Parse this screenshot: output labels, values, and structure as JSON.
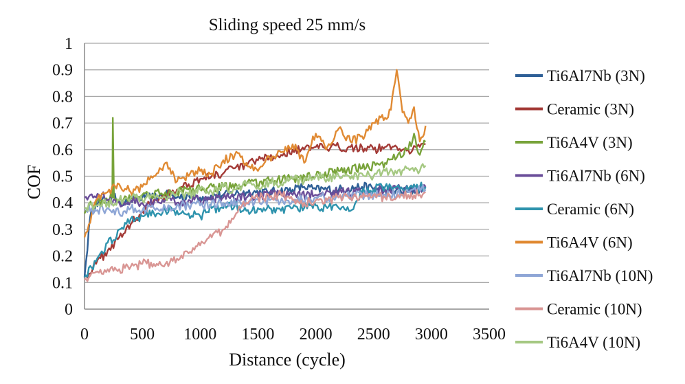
{
  "chart_data": {
    "type": "line",
    "title": "Sliding speed 25 mm/s",
    "xlabel": "Distance (cycle)",
    "ylabel": "COF",
    "xlim": [
      0,
      3500
    ],
    "ylim": [
      0,
      1
    ],
    "xticks": [
      "0",
      "500",
      "1000",
      "1500",
      "2000",
      "2500",
      "3000",
      "3500"
    ],
    "yticks": [
      "0",
      "0.1",
      "0.2",
      "0.3",
      "0.4",
      "0.5",
      "0.6",
      "0.7",
      "0.8",
      "0.9",
      "1"
    ],
    "grid": true,
    "legend_position": "right",
    "series": [
      {
        "name": "Ti6Al7Nb (3N)",
        "color": "#2e5f96",
        "x": [
          0,
          50,
          100,
          150,
          200,
          250,
          300,
          350,
          400,
          500,
          600,
          700,
          800,
          900,
          1000,
          1200,
          1400,
          1600,
          1800,
          1900,
          2000,
          2200,
          2400,
          2600,
          2800,
          2950
        ],
        "y": [
          0.12,
          0.35,
          0.4,
          0.41,
          0.4,
          0.42,
          0.41,
          0.4,
          0.41,
          0.42,
          0.42,
          0.43,
          0.42,
          0.43,
          0.42,
          0.43,
          0.44,
          0.44,
          0.45,
          0.46,
          0.45,
          0.45,
          0.46,
          0.45,
          0.44,
          0.46
        ]
      },
      {
        "name": "Ceramic (3N)",
        "color": "#a33a36",
        "x": [
          0,
          100,
          200,
          300,
          400,
          500,
          600,
          700,
          800,
          900,
          1000,
          1100,
          1200,
          1300,
          1400,
          1500,
          1600,
          1700,
          1800,
          1900,
          2000,
          2100,
          2200,
          2300,
          2400,
          2500,
          2600,
          2700,
          2800,
          2900,
          2950
        ],
        "y": [
          0.12,
          0.17,
          0.22,
          0.27,
          0.32,
          0.37,
          0.41,
          0.43,
          0.45,
          0.47,
          0.49,
          0.5,
          0.51,
          0.53,
          0.54,
          0.56,
          0.57,
          0.58,
          0.6,
          0.6,
          0.61,
          0.6,
          0.61,
          0.61,
          0.61,
          0.6,
          0.61,
          0.61,
          0.6,
          0.61,
          0.62
        ]
      },
      {
        "name": "Ti6A4V (3N)",
        "color": "#78a33a",
        "x": [
          0,
          40,
          100,
          150,
          200,
          240,
          245,
          255,
          300,
          400,
          500,
          600,
          700,
          800,
          900,
          1000,
          1200,
          1400,
          1600,
          1800,
          2000,
          2200,
          2400,
          2600,
          2700,
          2800,
          2850,
          2900,
          2950
        ],
        "y": [
          0.36,
          0.39,
          0.4,
          0.41,
          0.41,
          0.42,
          0.72,
          0.42,
          0.41,
          0.42,
          0.43,
          0.43,
          0.44,
          0.44,
          0.45,
          0.45,
          0.46,
          0.47,
          0.48,
          0.49,
          0.5,
          0.52,
          0.53,
          0.55,
          0.57,
          0.6,
          0.66,
          0.58,
          0.63
        ]
      },
      {
        "name": "Ti6Al7Nb (6N)",
        "color": "#6a4d99",
        "x": [
          0,
          50,
          100,
          150,
          200,
          300,
          400,
          500,
          600,
          700,
          800,
          900,
          1000,
          1200,
          1400,
          1600,
          1800,
          2000,
          2200,
          2400,
          2600,
          2800,
          2950
        ],
        "y": [
          0.42,
          0.43,
          0.42,
          0.43,
          0.41,
          0.4,
          0.41,
          0.4,
          0.4,
          0.41,
          0.4,
          0.41,
          0.41,
          0.42,
          0.42,
          0.43,
          0.43,
          0.43,
          0.44,
          0.44,
          0.45,
          0.45,
          0.46
        ]
      },
      {
        "name": "Ceramic (6N)",
        "color": "#2e93ad",
        "x": [
          0,
          100,
          200,
          250,
          300,
          400,
          500,
          600,
          700,
          800,
          900,
          1000,
          1100,
          1200,
          1300,
          1400,
          1500,
          1600,
          1700,
          1800,
          1900,
          2000,
          2100,
          2200,
          2300,
          2400,
          2500,
          2600,
          2700,
          2800,
          2900,
          2950
        ],
        "y": [
          0.12,
          0.18,
          0.25,
          0.26,
          0.3,
          0.34,
          0.35,
          0.36,
          0.37,
          0.37,
          0.36,
          0.35,
          0.38,
          0.38,
          0.39,
          0.37,
          0.38,
          0.38,
          0.37,
          0.38,
          0.38,
          0.39,
          0.38,
          0.38,
          0.37,
          0.44,
          0.45,
          0.46,
          0.46,
          0.45,
          0.46,
          0.46
        ]
      },
      {
        "name": "Ti6A4V (6N)",
        "color": "#e08a33",
        "x": [
          0,
          100,
          200,
          300,
          400,
          500,
          600,
          700,
          800,
          900,
          1000,
          1100,
          1200,
          1300,
          1400,
          1500,
          1600,
          1700,
          1800,
          1900,
          2000,
          2100,
          2200,
          2300,
          2400,
          2500,
          2600,
          2650,
          2700,
          2750,
          2800,
          2850,
          2900,
          2950
        ],
        "y": [
          0.27,
          0.41,
          0.44,
          0.47,
          0.44,
          0.46,
          0.5,
          0.55,
          0.48,
          0.5,
          0.52,
          0.51,
          0.56,
          0.58,
          0.55,
          0.52,
          0.57,
          0.59,
          0.62,
          0.55,
          0.66,
          0.61,
          0.68,
          0.63,
          0.65,
          0.7,
          0.72,
          0.75,
          0.9,
          0.74,
          0.7,
          0.76,
          0.63,
          0.69
        ]
      },
      {
        "name": "Ti6Al7Nb (10N)",
        "color": "#8ea6d6",
        "x": [
          0,
          100,
          200,
          300,
          400,
          500,
          600,
          700,
          800,
          900,
          1000,
          1200,
          1400,
          1600,
          1800,
          2000,
          2200,
          2400,
          2600,
          2800,
          2950
        ],
        "y": [
          0.38,
          0.37,
          0.38,
          0.36,
          0.38,
          0.37,
          0.38,
          0.38,
          0.39,
          0.39,
          0.39,
          0.4,
          0.4,
          0.41,
          0.41,
          0.42,
          0.42,
          0.43,
          0.43,
          0.44,
          0.45
        ]
      },
      {
        "name": "Ceramic (10N)",
        "color": "#d99694",
        "x": [
          0,
          100,
          200,
          300,
          400,
          500,
          600,
          700,
          800,
          900,
          1000,
          1100,
          1200,
          1300,
          1350,
          1400,
          1500,
          1600,
          1700,
          1800,
          1900,
          2000,
          2100,
          2200,
          2300,
          2400,
          2500,
          2600,
          2700,
          2800,
          2900,
          2950
        ],
        "y": [
          0.11,
          0.14,
          0.15,
          0.15,
          0.16,
          0.17,
          0.17,
          0.17,
          0.19,
          0.21,
          0.24,
          0.27,
          0.3,
          0.35,
          0.38,
          0.4,
          0.42,
          0.42,
          0.43,
          0.41,
          0.4,
          0.41,
          0.41,
          0.42,
          0.42,
          0.42,
          0.43,
          0.42,
          0.42,
          0.43,
          0.43,
          0.44
        ]
      },
      {
        "name": "Ti6A4V (10N)",
        "color": "#a5c882",
        "x": [
          0,
          100,
          200,
          300,
          400,
          500,
          600,
          700,
          800,
          900,
          1000,
          1100,
          1200,
          1300,
          1400,
          1500,
          1600,
          1700,
          1800,
          1900,
          2000,
          2100,
          2200,
          2300,
          2400,
          2500,
          2600,
          2700,
          2800,
          2900,
          2950
        ],
        "y": [
          0.38,
          0.39,
          0.4,
          0.41,
          0.42,
          0.41,
          0.43,
          0.42,
          0.44,
          0.43,
          0.45,
          0.44,
          0.46,
          0.45,
          0.47,
          0.46,
          0.48,
          0.47,
          0.49,
          0.48,
          0.5,
          0.49,
          0.5,
          0.49,
          0.51,
          0.5,
          0.52,
          0.51,
          0.53,
          0.52,
          0.54
        ]
      }
    ]
  }
}
